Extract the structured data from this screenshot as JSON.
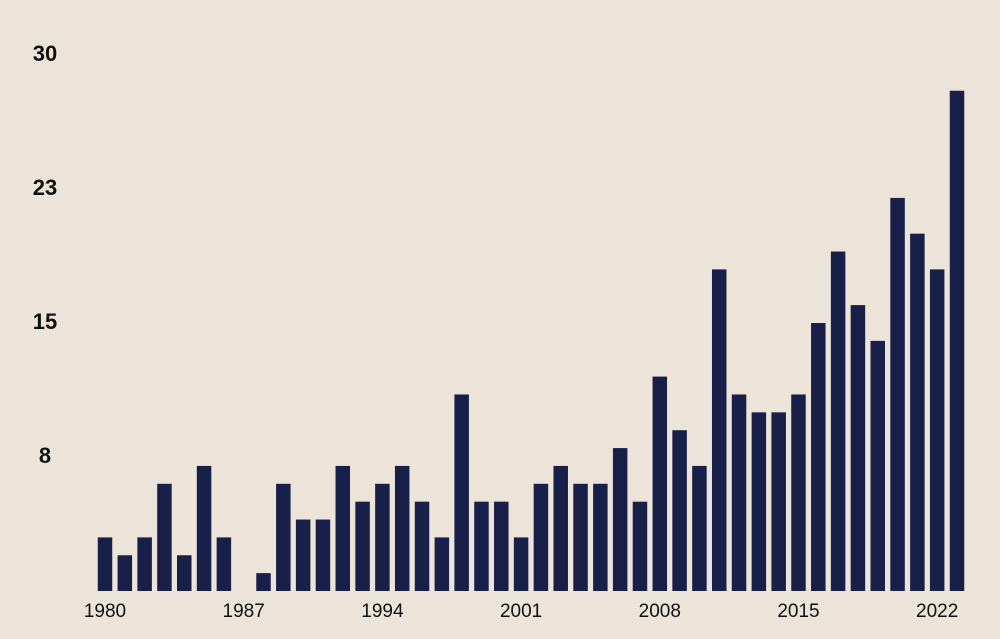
{
  "chart_data": {
    "type": "bar",
    "categories": [
      "1980",
      null,
      null,
      null,
      null,
      null,
      null,
      "1987",
      null,
      null,
      null,
      null,
      null,
      null,
      "1994",
      null,
      null,
      null,
      null,
      null,
      null,
      "2001",
      null,
      null,
      null,
      null,
      null,
      null,
      "2008",
      null,
      null,
      null,
      null,
      null,
      null,
      "2015",
      null,
      null,
      null,
      null,
      null,
      null,
      "2022",
      null
    ],
    "values": [
      3,
      2,
      3,
      6,
      2,
      7,
      3,
      0,
      1,
      6,
      4,
      4,
      7,
      5,
      6,
      7,
      5,
      3,
      11,
      5,
      5,
      3,
      6,
      7,
      6,
      6,
      8,
      5,
      12,
      9,
      7,
      18,
      11,
      10,
      10,
      11,
      15,
      19,
      16,
      14,
      22,
      20,
      18,
      28
    ],
    "color": "#18204a",
    "ylim": [
      0,
      30
    ],
    "yticks": [
      {
        "value": 7.5,
        "label": "8"
      },
      15,
      {
        "value": 22.5,
        "label": "23"
      },
      30
    ],
    "grid": false
  }
}
